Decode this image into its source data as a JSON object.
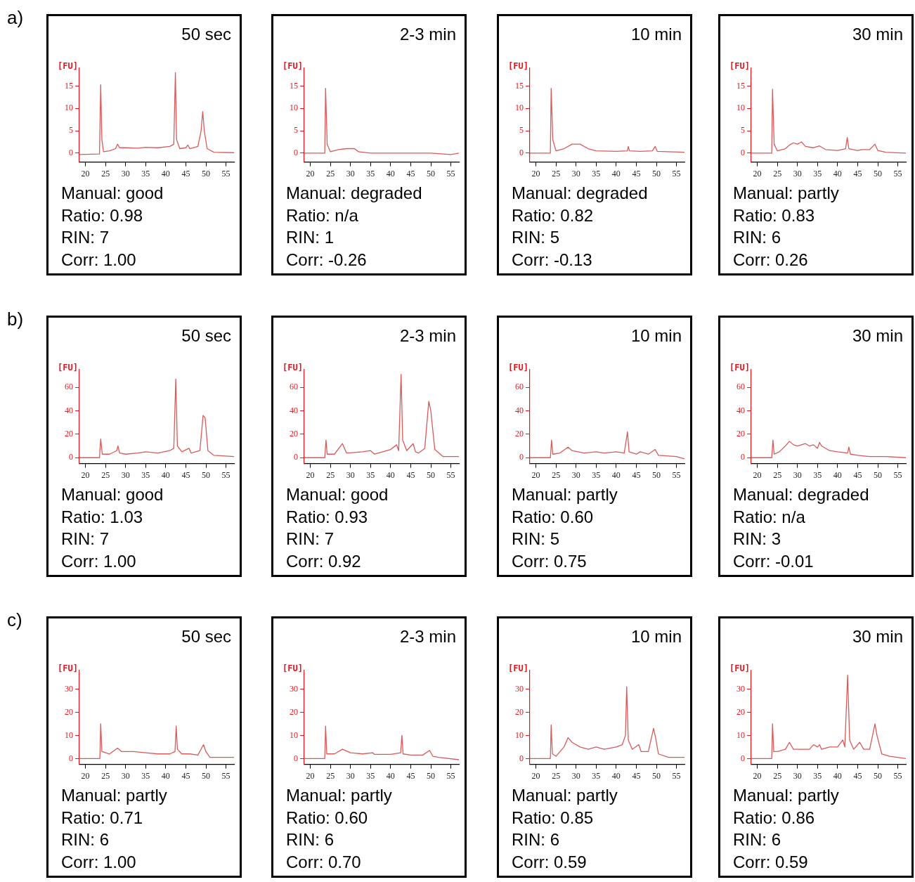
{
  "chart_data": [
    {
      "type": "line",
      "subtitle": "a)",
      "title": "50 sec",
      "ylabel": "[FU]",
      "color": "#d95a5a",
      "xlim": [
        18.5,
        57
      ],
      "xticks": [
        20,
        25,
        30,
        35,
        40,
        45,
        50,
        55
      ],
      "ylim": [
        -2,
        19
      ],
      "yticks": [
        0,
        5,
        10,
        15
      ],
      "annotations": [
        "Manual: good",
        "Ratio: 0.98",
        "RIN: 7",
        "Corr: 1.00"
      ],
      "x": [
        18.5,
        23.5,
        23.8,
        24.1,
        24.5,
        26,
        27.5,
        28,
        28.5,
        30,
        33,
        35,
        38,
        41,
        42,
        42.4,
        42.7,
        43.5,
        45,
        45.5,
        46,
        48,
        48.8,
        49.2,
        49.6,
        50.3,
        52,
        57
      ],
      "values": [
        -0.3,
        -0.2,
        15.3,
        3,
        0.3,
        0.5,
        1,
        2,
        1.2,
        1.2,
        1.1,
        1.3,
        1.2,
        1.5,
        2,
        18,
        3,
        1,
        1.2,
        1.8,
        1,
        1.5,
        5,
        9.3,
        5,
        1,
        0.2,
        0.1
      ]
    },
    {
      "type": "line",
      "title": "2-3 min",
      "ylabel": "[FU]",
      "color": "#d95a5a",
      "xlim": [
        18.5,
        57
      ],
      "xticks": [
        20,
        25,
        30,
        35,
        40,
        45,
        50,
        55
      ],
      "ylim": [
        -2,
        19
      ],
      "yticks": [
        0,
        5,
        10,
        15
      ],
      "annotations": [
        "Manual: degraded",
        "Ratio: n/a",
        "RIN: 1",
        "Corr: -0.26"
      ],
      "x": [
        18.5,
        23.6,
        23.8,
        24.2,
        25,
        27,
        29,
        31,
        32,
        35,
        40,
        50,
        55,
        57
      ],
      "values": [
        0,
        0,
        14.5,
        2,
        0.3,
        0.8,
        1,
        1,
        0.3,
        0,
        0,
        0,
        -0.3,
        0
      ]
    },
    {
      "type": "line",
      "title": "10 min",
      "ylabel": "[FU]",
      "color": "#d95a5a",
      "xlim": [
        18.5,
        57
      ],
      "xticks": [
        20,
        25,
        30,
        35,
        40,
        45,
        50,
        55
      ],
      "ylim": [
        -2,
        19
      ],
      "yticks": [
        0,
        5,
        10,
        15
      ],
      "annotations": [
        "Manual: degraded",
        "Ratio: 0.82",
        "RIN: 5",
        "Corr: -0.13"
      ],
      "x": [
        18.5,
        23.6,
        23.8,
        24.2,
        25,
        27,
        29,
        31,
        33,
        35,
        40,
        42.8,
        43,
        43.3,
        46,
        49,
        49.7,
        50.2,
        57
      ],
      "values": [
        0,
        0,
        14.5,
        3,
        0.5,
        1,
        2,
        2,
        1,
        0.5,
        0.4,
        0.5,
        1.5,
        0.5,
        0.4,
        0.5,
        1.5,
        0.4,
        0.2
      ]
    },
    {
      "type": "line",
      "title": "30 min",
      "ylabel": "[FU]",
      "color": "#d95a5a",
      "xlim": [
        18.5,
        57
      ],
      "xticks": [
        20,
        25,
        30,
        35,
        40,
        45,
        50,
        55
      ],
      "ylim": [
        -2,
        19
      ],
      "yticks": [
        0,
        5,
        10,
        15
      ],
      "annotations": [
        "Manual: partly",
        "Ratio: 0.83",
        "RIN: 6",
        "Corr: 0.26"
      ],
      "x": [
        18.5,
        23.6,
        23.8,
        24.2,
        25,
        27,
        28,
        29,
        30,
        31,
        32,
        34,
        35.5,
        37,
        40,
        42,
        42.4,
        42.8,
        45,
        46,
        48,
        49.3,
        50,
        52,
        57
      ],
      "values": [
        0,
        0,
        14.3,
        2,
        0.5,
        1,
        1.8,
        2.3,
        2,
        2.5,
        1.5,
        1.2,
        1.6,
        0.8,
        0.6,
        1,
        3.5,
        1,
        0.6,
        0.8,
        0.8,
        2,
        0.6,
        0.2,
        0
      ]
    },
    {
      "type": "line",
      "subtitle": "b)",
      "title": "50 sec",
      "ylabel": "[FU]",
      "color": "#d95a5a",
      "xlim": [
        18.5,
        57
      ],
      "xticks": [
        20,
        25,
        30,
        35,
        40,
        45,
        50,
        55
      ],
      "ylim": [
        -5,
        75
      ],
      "yticks": [
        0,
        20,
        40,
        60
      ],
      "annotations": [
        "Manual: good",
        "Ratio: 1.03",
        "RIN: 7",
        "Corr: 1.00"
      ],
      "x": [
        18.5,
        23.5,
        23.8,
        24.2,
        26,
        27.8,
        28.1,
        28.5,
        30,
        33,
        35,
        38,
        41,
        42,
        42.5,
        42.9,
        44,
        45.8,
        46.3,
        48.5,
        49.3,
        49.8,
        50.5,
        52,
        57
      ],
      "values": [
        0,
        0,
        16,
        3,
        3,
        6,
        10,
        4,
        3,
        4,
        5,
        4,
        6,
        8,
        67,
        10,
        5,
        8,
        4,
        6,
        36,
        34,
        6,
        2,
        1
      ]
    },
    {
      "type": "line",
      "title": "2-3 min",
      "ylabel": "[FU]",
      "color": "#d95a5a",
      "xlim": [
        18.5,
        57
      ],
      "xticks": [
        20,
        25,
        30,
        35,
        40,
        45,
        50,
        55
      ],
      "ylim": [
        -5,
        75
      ],
      "yticks": [
        0,
        20,
        40,
        60
      ],
      "annotations": [
        "Manual: good",
        "Ratio: 0.93",
        "RIN: 7",
        "Corr: 0.92"
      ],
      "x": [
        18.5,
        23.6,
        23.9,
        24.2,
        26,
        28,
        29,
        33,
        35,
        36,
        38,
        40,
        41.5,
        42,
        42.6,
        43,
        44,
        45.6,
        46.2,
        47,
        48.5,
        49.5,
        50,
        51,
        53,
        57
      ],
      "values": [
        0,
        0,
        15,
        3,
        3,
        12,
        4,
        5,
        6,
        3,
        5,
        7,
        11,
        6,
        71,
        15,
        6,
        12,
        5,
        4,
        8,
        48,
        40,
        7,
        1,
        1
      ]
    },
    {
      "type": "line",
      "title": "10 min",
      "ylabel": "[FU]",
      "color": "#d95a5a",
      "xlim": [
        18.5,
        57
      ],
      "xticks": [
        20,
        25,
        30,
        35,
        40,
        45,
        50,
        55
      ],
      "ylim": [
        -5,
        75
      ],
      "yticks": [
        0,
        20,
        40,
        60
      ],
      "annotations": [
        "Manual: partly",
        "Ratio: 0.60",
        "RIN: 5",
        "Corr: 0.75"
      ],
      "x": [
        18.5,
        23.6,
        23.9,
        24.2,
        26,
        28,
        29,
        32,
        35,
        37,
        40,
        42,
        42.8,
        43.2,
        45,
        46,
        48,
        49.7,
        50.5,
        55,
        57
      ],
      "values": [
        0,
        0,
        15,
        3,
        4,
        9,
        6,
        4,
        5,
        4,
        5,
        4,
        22,
        5,
        3,
        5,
        3,
        7,
        2,
        1,
        -1
      ]
    },
    {
      "type": "line",
      "title": "30 min",
      "ylabel": "[FU]",
      "color": "#d95a5a",
      "xlim": [
        18.5,
        57
      ],
      "xticks": [
        20,
        25,
        30,
        35,
        40,
        45,
        50,
        55
      ],
      "ylim": [
        -5,
        75
      ],
      "yticks": [
        0,
        20,
        40,
        60
      ],
      "annotations": [
        "Manual: degraded",
        "Ratio: n/a",
        "RIN: 3",
        "Corr: -0.01"
      ],
      "x": [
        18.5,
        23.6,
        23.9,
        24.2,
        25.5,
        27,
        28,
        29,
        30,
        31,
        32,
        33,
        34,
        35,
        35.5,
        36,
        38,
        40,
        42.5,
        42.8,
        43.2,
        45,
        48,
        52,
        57
      ],
      "values": [
        0,
        0,
        15,
        3,
        5,
        10,
        14,
        11,
        10,
        11,
        12,
        10,
        11,
        8,
        13,
        10,
        6,
        5,
        4,
        9,
        3,
        2,
        1,
        1,
        0
      ]
    },
    {
      "type": "line",
      "subtitle": "c)",
      "title": "50 sec",
      "ylabel": "[FU]",
      "color": "#d95a5a",
      "xlim": [
        18.5,
        57
      ],
      "xticks": [
        20,
        25,
        30,
        35,
        40,
        45,
        50,
        55
      ],
      "ylim": [
        -2.5,
        38
      ],
      "yticks": [
        0,
        10,
        20,
        30
      ],
      "annotations": [
        "Manual: partly",
        "Ratio: 0.71",
        "RIN: 6",
        "Corr: 1.00"
      ],
      "x": [
        18.5,
        23.6,
        23.8,
        24.1,
        26,
        28,
        29,
        32,
        35,
        38,
        41,
        42.3,
        42.6,
        42.9,
        44,
        46,
        48,
        49.4,
        50,
        51,
        57
      ],
      "values": [
        0,
        0,
        15,
        3,
        2,
        4.5,
        3,
        3,
        2.5,
        2,
        2,
        3,
        14,
        4,
        2,
        2,
        1.5,
        6,
        3,
        0.5,
        0.5
      ]
    },
    {
      "type": "line",
      "title": "2-3 min",
      "ylabel": "[FU]",
      "color": "#d95a5a",
      "xlim": [
        18.5,
        57
      ],
      "xticks": [
        20,
        25,
        30,
        35,
        40,
        45,
        50,
        55
      ],
      "ylim": [
        -2.5,
        38
      ],
      "yticks": [
        0,
        10,
        20,
        30
      ],
      "annotations": [
        "Manual: partly",
        "Ratio: 0.60",
        "RIN: 6",
        "Corr: 0.70"
      ],
      "x": [
        18.5,
        23.6,
        23.8,
        24.1,
        26,
        28,
        30,
        33,
        35.5,
        36,
        40,
        42.5,
        42.8,
        43.1,
        45,
        48,
        49.7,
        50.5,
        52,
        57
      ],
      "values": [
        0,
        0,
        14,
        2,
        2,
        4,
        2.5,
        2,
        2.5,
        1.8,
        1.8,
        2.5,
        10,
        2,
        1.5,
        1.5,
        3.5,
        1,
        0.5,
        -0.5
      ]
    },
    {
      "type": "line",
      "title": "10 min",
      "ylabel": "[FU]",
      "color": "#d95a5a",
      "xlim": [
        18.5,
        57
      ],
      "xticks": [
        20,
        25,
        30,
        35,
        40,
        45,
        50,
        55
      ],
      "ylim": [
        -2.5,
        38
      ],
      "yticks": [
        0,
        10,
        20,
        30
      ],
      "annotations": [
        "Manual: partly",
        "Ratio: 0.85",
        "RIN: 6",
        "Corr: 0.59"
      ],
      "x": [
        18.5,
        23.6,
        23.8,
        24.1,
        25,
        27,
        28,
        29,
        31,
        33,
        35,
        37,
        40,
        41.5,
        42.3,
        42.6,
        43,
        44,
        45.6,
        46.2,
        48,
        49.3,
        49.8,
        50.5,
        53,
        57
      ],
      "values": [
        0,
        0,
        14.5,
        2,
        1,
        5,
        9,
        7,
        5,
        4,
        5,
        4,
        5,
        6,
        10,
        31,
        8,
        4,
        6,
        3,
        3,
        13,
        9,
        2,
        0.5,
        0.5
      ]
    },
    {
      "type": "line",
      "title": "30 min",
      "ylabel": "[FU]",
      "color": "#d95a5a",
      "xlim": [
        18.5,
        57
      ],
      "xticks": [
        20,
        25,
        30,
        35,
        40,
        45,
        50,
        55
      ],
      "ylim": [
        -2.5,
        38
      ],
      "yticks": [
        0,
        10,
        20,
        30
      ],
      "annotations": [
        "Manual: partly",
        "Ratio: 0.86",
        "RIN: 6",
        "Corr: 0.59"
      ],
      "x": [
        18.5,
        23.6,
        23.8,
        24.1,
        25,
        27,
        28,
        29,
        33,
        34,
        35,
        35.5,
        36,
        38,
        40,
        41.3,
        41.8,
        42.5,
        43,
        44,
        45.5,
        46.5,
        48,
        49.3,
        49.8,
        51,
        53,
        57
      ],
      "values": [
        0,
        0,
        15,
        3,
        3,
        4,
        7,
        4,
        4,
        6,
        5,
        6,
        4,
        5,
        5,
        8,
        5,
        36,
        8,
        4,
        7,
        4,
        4,
        15,
        10,
        2,
        1,
        0
      ]
    }
  ]
}
